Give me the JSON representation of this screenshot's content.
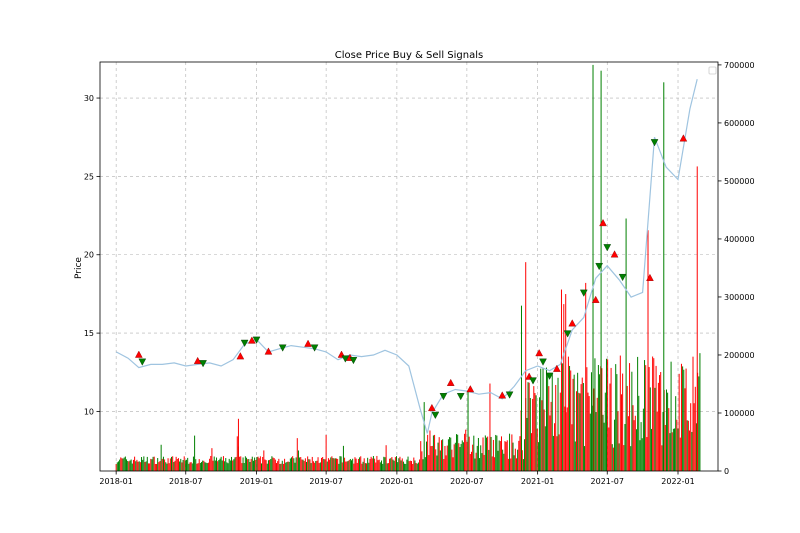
{
  "chart_data": {
    "type": "line",
    "title": "Close Price Buy & Sell Signals",
    "xlabel": "",
    "ylabel": "Price",
    "ylabel_right": "",
    "x_ticks": [
      "2018-01",
      "2018-07",
      "2019-01",
      "2019-07",
      "2020-01",
      "2020-07",
      "2021-01",
      "2021-07",
      "2022-01"
    ],
    "y_ticks_left": [
      "10",
      "15",
      "20",
      "25",
      "30"
    ],
    "y_ticks_right": [
      "0",
      "100000",
      "200000",
      "300000",
      "400000",
      "500000",
      "600000",
      "700000"
    ],
    "ylim": [
      6.2,
      32.3
    ],
    "ylim_right": [
      0,
      705000
    ],
    "xlim": [
      "2017-11-20",
      "2022-04-15"
    ],
    "grid": true,
    "legend": "top-right (empty)",
    "colors": {
      "price": "#9fc4e0",
      "buy": "#ff0000",
      "sell": "#008000",
      "vol_up": "#ff0000",
      "vol_down": "#008000",
      "grid": "#b0b0b0"
    },
    "price": [
      [
        "2018-01-01",
        13.8
      ],
      [
        "2018-02-01",
        13.4
      ],
      [
        "2018-03-01",
        12.8
      ],
      [
        "2018-04-01",
        13.0
      ],
      [
        "2018-05-01",
        13.0
      ],
      [
        "2018-06-01",
        13.1
      ],
      [
        "2018-07-01",
        12.9
      ],
      [
        "2018-08-01",
        13.0
      ],
      [
        "2018-09-01",
        13.1
      ],
      [
        "2018-10-01",
        12.9
      ],
      [
        "2018-11-01",
        13.3
      ],
      [
        "2018-12-01",
        14.3
      ],
      [
        "2019-01-01",
        14.6
      ],
      [
        "2019-02-01",
        13.8
      ],
      [
        "2019-03-01",
        14.0
      ],
      [
        "2019-04-01",
        14.2
      ],
      [
        "2019-05-01",
        14.1
      ],
      [
        "2019-06-01",
        14.0
      ],
      [
        "2019-07-01",
        13.8
      ],
      [
        "2019-08-01",
        13.3
      ],
      [
        "2019-09-01",
        13.6
      ],
      [
        "2019-10-01",
        13.5
      ],
      [
        "2019-11-01",
        13.6
      ],
      [
        "2019-12-01",
        13.9
      ],
      [
        "2020-01-01",
        13.6
      ],
      [
        "2020-02-01",
        12.9
      ],
      [
        "2020-03-01",
        10.2
      ],
      [
        "2020-03-20",
        8.6
      ],
      [
        "2020-04-01",
        9.9
      ],
      [
        "2020-05-01",
        11.1
      ],
      [
        "2020-06-01",
        11.4
      ],
      [
        "2020-07-01",
        11.3
      ],
      [
        "2020-08-01",
        11.1
      ],
      [
        "2020-09-01",
        11.2
      ],
      [
        "2020-10-01",
        10.8
      ],
      [
        "2020-11-01",
        11.6
      ],
      [
        "2020-12-01",
        12.6
      ],
      [
        "2021-01-01",
        12.9
      ],
      [
        "2021-02-01",
        12.6
      ],
      [
        "2021-03-01",
        13.0
      ],
      [
        "2021-04-01",
        15.2
      ],
      [
        "2021-05-01",
        16.0
      ],
      [
        "2021-06-01",
        18.5
      ],
      [
        "2021-07-01",
        19.3
      ],
      [
        "2021-08-01",
        18.4
      ],
      [
        "2021-09-01",
        17.3
      ],
      [
        "2021-10-01",
        17.6
      ],
      [
        "2021-11-01",
        27.5
      ],
      [
        "2021-12-01",
        25.6
      ],
      [
        "2022-01-01",
        24.8
      ],
      [
        "2022-02-01",
        29.3
      ],
      [
        "2022-02-20",
        31.2
      ]
    ],
    "buy_signals": [
      [
        "2018-03-01",
        13.6
      ],
      [
        "2018-08-01",
        13.2
      ],
      [
        "2018-11-20",
        13.5
      ],
      [
        "2018-12-20",
        14.5
      ],
      [
        "2019-02-01",
        13.8
      ],
      [
        "2019-05-15",
        14.3
      ],
      [
        "2019-08-10",
        13.6
      ],
      [
        "2019-09-01",
        13.4
      ],
      [
        "2020-04-01",
        10.2
      ],
      [
        "2020-05-20",
        11.8
      ],
      [
        "2020-07-10",
        11.4
      ],
      [
        "2020-10-01",
        11.0
      ],
      [
        "2020-12-10",
        12.2
      ],
      [
        "2021-01-05",
        13.7
      ],
      [
        "2021-02-20",
        12.7
      ],
      [
        "2021-04-01",
        15.6
      ],
      [
        "2021-06-01",
        17.1
      ],
      [
        "2021-06-20",
        22.0
      ],
      [
        "2021-07-20",
        20.0
      ],
      [
        "2021-10-20",
        18.5
      ],
      [
        "2022-01-15",
        27.4
      ]
    ],
    "sell_signals": [
      [
        "2018-03-10",
        13.2
      ],
      [
        "2018-08-15",
        13.1
      ],
      [
        "2018-12-01",
        14.4
      ],
      [
        "2019-01-01",
        14.6
      ],
      [
        "2019-03-10",
        14.1
      ],
      [
        "2019-06-01",
        14.1
      ],
      [
        "2019-08-20",
        13.4
      ],
      [
        "2019-09-10",
        13.3
      ],
      [
        "2020-04-10",
        9.8
      ],
      [
        "2020-05-01",
        11.0
      ],
      [
        "2020-06-15",
        11.0
      ],
      [
        "2020-10-20",
        11.1
      ],
      [
        "2020-12-20",
        12.0
      ],
      [
        "2021-01-15",
        13.2
      ],
      [
        "2021-02-01",
        12.3
      ],
      [
        "2021-03-20",
        15.0
      ],
      [
        "2021-05-01",
        17.6
      ],
      [
        "2021-06-10",
        19.3
      ],
      [
        "2021-07-01",
        20.5
      ],
      [
        "2021-08-10",
        18.6
      ],
      [
        "2021-11-01",
        27.2
      ]
    ]
  }
}
